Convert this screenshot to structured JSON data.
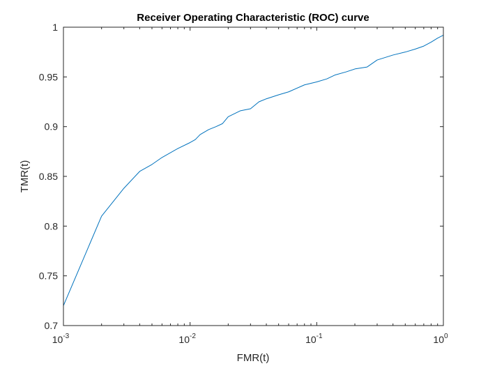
{
  "chart_data": {
    "type": "line",
    "title": "Receiver Operating Characteristic (ROC) curve",
    "xlabel": "FMR(t)",
    "ylabel": "TMR(t)",
    "xscale": "log",
    "xlim": [
      0.001,
      1
    ],
    "ylim": [
      0.7,
      1
    ],
    "grid": false,
    "x_ticks": [
      {
        "value": 0.001,
        "base": "10",
        "exp": "-3"
      },
      {
        "value": 0.01,
        "base": "10",
        "exp": "-2"
      },
      {
        "value": 0.1,
        "base": "10",
        "exp": "-1"
      },
      {
        "value": 1,
        "base": "10",
        "exp": "0"
      }
    ],
    "y_ticks": [
      {
        "value": 0.7,
        "label": "0.7"
      },
      {
        "value": 0.75,
        "label": "0.75"
      },
      {
        "value": 0.8,
        "label": "0.8"
      },
      {
        "value": 0.85,
        "label": "0.85"
      },
      {
        "value": 0.9,
        "label": "0.9"
      },
      {
        "value": 0.95,
        "label": "0.95"
      },
      {
        "value": 1,
        "label": "1"
      }
    ],
    "line_color": "#0072BD",
    "series": [
      {
        "x": [
          0.001,
          0.002,
          0.003,
          0.004,
          0.005,
          0.006,
          0.008,
          0.01,
          0.011,
          0.012,
          0.014,
          0.016,
          0.018,
          0.02,
          0.025,
          0.03,
          0.035,
          0.04,
          0.05,
          0.06,
          0.08,
          0.1,
          0.12,
          0.14,
          0.17,
          0.2,
          0.25,
          0.3,
          0.4,
          0.5,
          0.6,
          0.7,
          0.8,
          0.9,
          1.0
        ],
        "y": [
          0.72,
          0.81,
          0.838,
          0.855,
          0.862,
          0.869,
          0.878,
          0.884,
          0.887,
          0.892,
          0.897,
          0.9,
          0.903,
          0.91,
          0.916,
          0.918,
          0.925,
          0.928,
          0.932,
          0.935,
          0.942,
          0.945,
          0.948,
          0.952,
          0.955,
          0.958,
          0.96,
          0.967,
          0.972,
          0.975,
          0.978,
          0.981,
          0.985,
          0.989,
          0.992
        ]
      }
    ]
  }
}
